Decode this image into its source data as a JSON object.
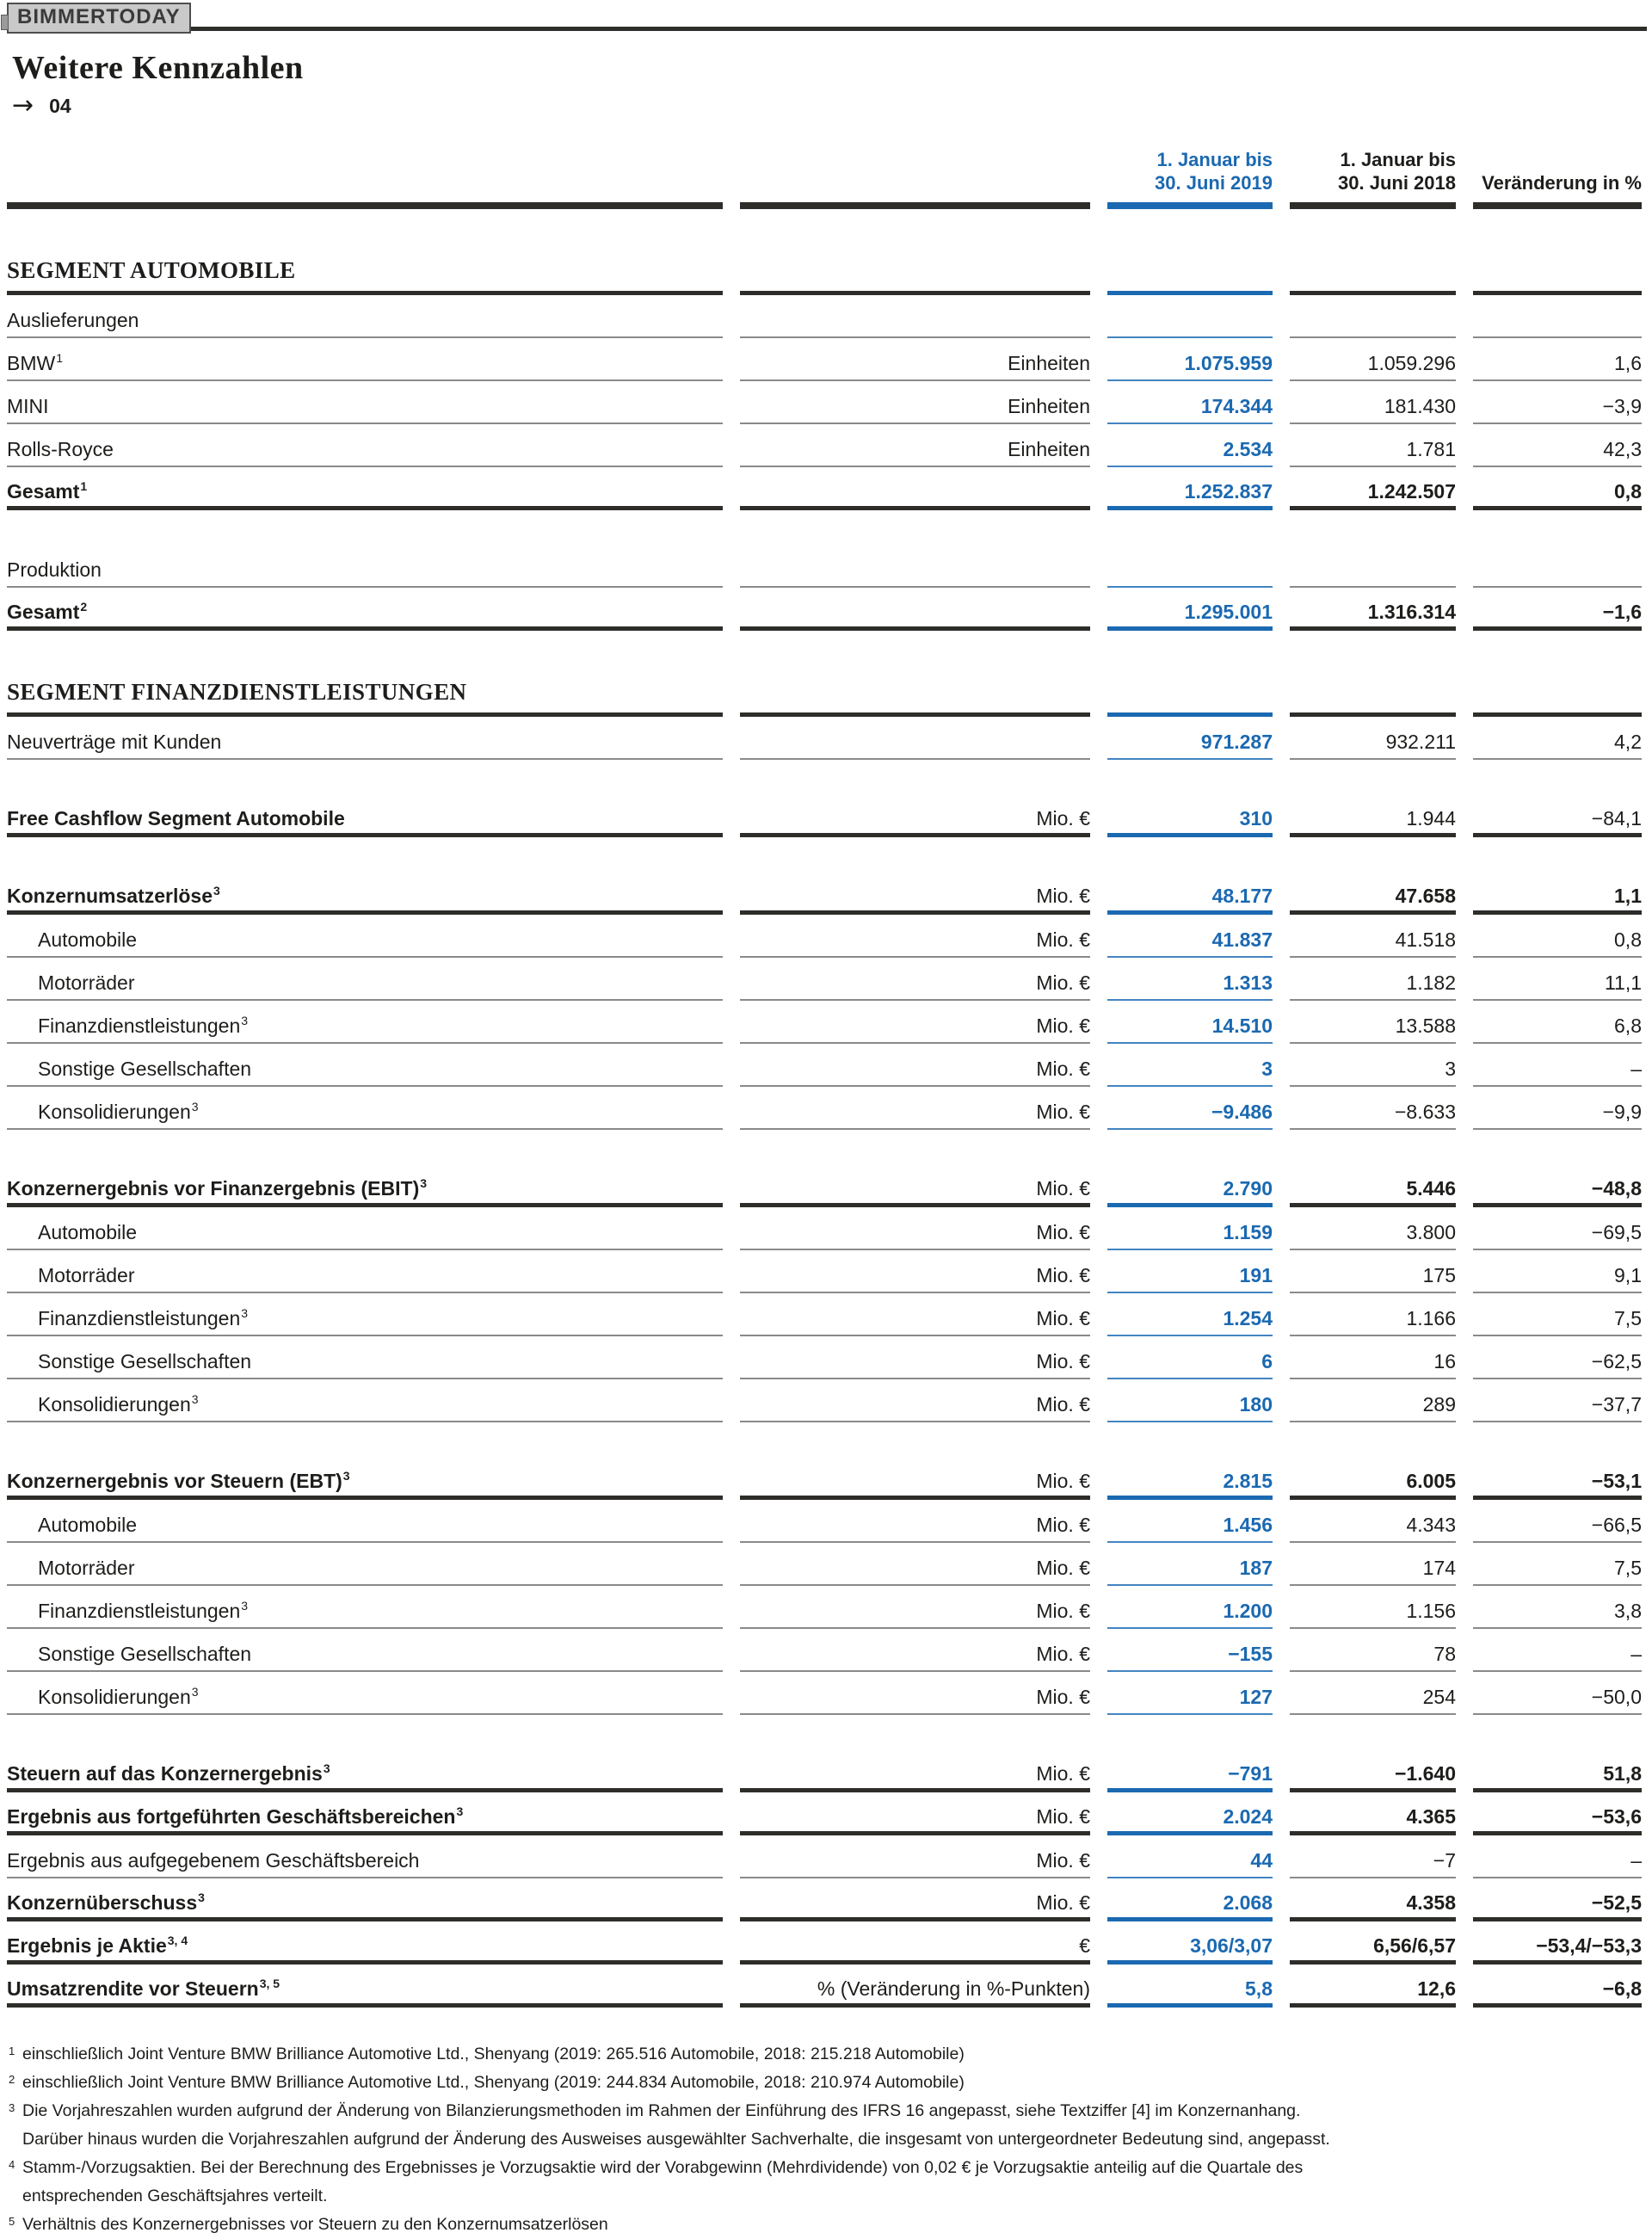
{
  "badge": "BIMMERTODAY",
  "title": "Weitere Kennzahlen",
  "page_marker": {
    "arrow": "→",
    "number": "04"
  },
  "colors": {
    "accent_blue": "#1b69b1",
    "rule_dark": "#2e2d2a",
    "rule_gray": "#8a8a8a",
    "text": "#1d1d1b",
    "badge_bg": "#c9c9c9"
  },
  "table": {
    "header": {
      "col_2019": [
        "1. Januar bis",
        "30. Juni 2019"
      ],
      "col_2018": [
        "1. Januar bis",
        "30. Juni 2018"
      ],
      "col_change": "Veränderung in %"
    },
    "rows": [
      {
        "kind": "section",
        "label": "SEGMENT AUTOMOBILE"
      },
      {
        "kind": "row",
        "label": "Auslieferungen",
        "unit": "",
        "v2019": "",
        "v2018": "",
        "chg": "",
        "rule": "thin"
      },
      {
        "kind": "row",
        "label": "BMW",
        "sup": "1",
        "unit": "Einheiten",
        "v2019": "1.075.959",
        "v2018": "1.059.296",
        "chg": "1,6",
        "rule": "thin"
      },
      {
        "kind": "row",
        "label": "MINI",
        "unit": "Einheiten",
        "v2019": "174.344",
        "v2018": "181.430",
        "chg": "−3,9",
        "rule": "thin"
      },
      {
        "kind": "row",
        "label": "Rolls-Royce",
        "unit": "Einheiten",
        "v2019": "2.534",
        "v2018": "1.781",
        "chg": "42,3",
        "rule": "thin"
      },
      {
        "kind": "row",
        "label": "Gesamt",
        "sup": "1",
        "label_bold": true,
        "values_bold": true,
        "unit": "",
        "v2019": "1.252.837",
        "v2018": "1.242.507",
        "chg": "0,8",
        "rule": "thick"
      },
      {
        "kind": "row",
        "label": "Produktion",
        "unit": "",
        "v2019": "",
        "v2018": "",
        "chg": "",
        "rule": "thin",
        "gap": true
      },
      {
        "kind": "row",
        "label": "Gesamt",
        "sup": "2",
        "label_bold": true,
        "values_bold": true,
        "unit": "",
        "v2019": "1.295.001",
        "v2018": "1.316.314",
        "chg": "−1,6",
        "rule": "thick"
      },
      {
        "kind": "section",
        "label": "SEGMENT FINANZDIENSTLEISTUNGEN"
      },
      {
        "kind": "row",
        "label": "Neuverträge mit Kunden",
        "unit": "",
        "v2019": "971.287",
        "v2018": "932.211",
        "chg": "4,2",
        "rule": "thin"
      },
      {
        "kind": "row",
        "label": "Free Cashflow Segment Automobile",
        "label_bold": true,
        "unit": "Mio. €",
        "v2019": "310",
        "v2018": "1.944",
        "chg": "−84,1",
        "rule": "thick",
        "gap": true
      },
      {
        "kind": "row",
        "label": "Konzernumsatzerlöse",
        "sup": "3",
        "label_bold": true,
        "values_bold": true,
        "unit": "Mio. €",
        "v2019": "48.177",
        "v2018": "47.658",
        "chg": "1,1",
        "rule": "thick",
        "gap": true
      },
      {
        "kind": "row",
        "label": "Automobile",
        "indent": true,
        "unit": "Mio. €",
        "v2019": "41.837",
        "v2018": "41.518",
        "chg": "0,8",
        "rule": "thin"
      },
      {
        "kind": "row",
        "label": "Motorräder",
        "indent": true,
        "unit": "Mio. €",
        "v2019": "1.313",
        "v2018": "1.182",
        "chg": "11,1",
        "rule": "thin"
      },
      {
        "kind": "row",
        "label": "Finanzdienstleistungen",
        "sup": "3",
        "indent": true,
        "unit": "Mio. €",
        "v2019": "14.510",
        "v2018": "13.588",
        "chg": "6,8",
        "rule": "thin"
      },
      {
        "kind": "row",
        "label": "Sonstige Gesellschaften",
        "indent": true,
        "unit": "Mio. €",
        "v2019": "3",
        "v2018": "3",
        "chg": "–",
        "rule": "thin"
      },
      {
        "kind": "row",
        "label": "Konsolidierungen",
        "sup": "3",
        "indent": true,
        "unit": "Mio. €",
        "v2019": "−9.486",
        "v2018": "−8.633",
        "chg": "−9,9",
        "rule": "thin"
      },
      {
        "kind": "row",
        "label": "Konzernergebnis vor Finanzergebnis (EBIT)",
        "sup": "3",
        "label_bold": true,
        "values_bold": true,
        "unit": "Mio. €",
        "v2019": "2.790",
        "v2018": "5.446",
        "chg": "−48,8",
        "rule": "thick",
        "gap": true
      },
      {
        "kind": "row",
        "label": "Automobile",
        "indent": true,
        "unit": "Mio. €",
        "v2019": "1.159",
        "v2018": "3.800",
        "chg": "−69,5",
        "rule": "thin"
      },
      {
        "kind": "row",
        "label": "Motorräder",
        "indent": true,
        "unit": "Mio. €",
        "v2019": "191",
        "v2018": "175",
        "chg": "9,1",
        "rule": "thin"
      },
      {
        "kind": "row",
        "label": "Finanzdienstleistungen",
        "sup": "3",
        "indent": true,
        "unit": "Mio. €",
        "v2019": "1.254",
        "v2018": "1.166",
        "chg": "7,5",
        "rule": "thin"
      },
      {
        "kind": "row",
        "label": "Sonstige Gesellschaften",
        "indent": true,
        "unit": "Mio. €",
        "v2019": "6",
        "v2018": "16",
        "chg": "−62,5",
        "rule": "thin"
      },
      {
        "kind": "row",
        "label": "Konsolidierungen",
        "sup": "3",
        "indent": true,
        "unit": "Mio. €",
        "v2019": "180",
        "v2018": "289",
        "chg": "−37,7",
        "rule": "thin"
      },
      {
        "kind": "row",
        "label": "Konzernergebnis vor Steuern (EBT)",
        "sup": "3",
        "label_bold": true,
        "values_bold": true,
        "unit": "Mio. €",
        "v2019": "2.815",
        "v2018": "6.005",
        "chg": "−53,1",
        "rule": "thick",
        "gap": true
      },
      {
        "kind": "row",
        "label": "Automobile",
        "indent": true,
        "unit": "Mio. €",
        "v2019": "1.456",
        "v2018": "4.343",
        "chg": "−66,5",
        "rule": "thin"
      },
      {
        "kind": "row",
        "label": "Motorräder",
        "indent": true,
        "unit": "Mio. €",
        "v2019": "187",
        "v2018": "174",
        "chg": "7,5",
        "rule": "thin"
      },
      {
        "kind": "row",
        "label": "Finanzdienstleistungen",
        "sup": "3",
        "indent": true,
        "unit": "Mio. €",
        "v2019": "1.200",
        "v2018": "1.156",
        "chg": "3,8",
        "rule": "thin"
      },
      {
        "kind": "row",
        "label": "Sonstige Gesellschaften",
        "indent": true,
        "unit": "Mio. €",
        "v2019": "−155",
        "v2018": "78",
        "chg": "–",
        "rule": "thin"
      },
      {
        "kind": "row",
        "label": "Konsolidierungen",
        "sup": "3",
        "indent": true,
        "unit": "Mio. €",
        "v2019": "127",
        "v2018": "254",
        "chg": "−50,0",
        "rule": "thin"
      },
      {
        "kind": "row",
        "label": "Steuern auf das Konzernergebnis",
        "sup": "3",
        "label_bold": true,
        "values_bold": true,
        "unit": "Mio. €",
        "v2019": "−791",
        "v2018": "−1.640",
        "chg": "51,8",
        "rule": "thick",
        "gap": true
      },
      {
        "kind": "row",
        "label": "Ergebnis aus fortgeführten Geschäftsbereichen",
        "sup": "3",
        "label_bold": true,
        "values_bold": true,
        "unit": "Mio. €",
        "v2019": "2.024",
        "v2018": "4.365",
        "chg": "−53,6",
        "rule": "thick"
      },
      {
        "kind": "row",
        "label": "Ergebnis aus aufgegebenem Geschäftsbereich",
        "unit": "Mio. €",
        "v2019": "44",
        "v2018": "−7",
        "chg": "–",
        "rule": "thin"
      },
      {
        "kind": "row",
        "label": "Konzernüberschuss",
        "sup": "3",
        "label_bold": true,
        "values_bold": true,
        "unit": "Mio. €",
        "v2019": "2.068",
        "v2018": "4.358",
        "chg": "−52,5",
        "rule": "thick"
      },
      {
        "kind": "row",
        "label": "Ergebnis je Aktie",
        "sup": "3, 4",
        "label_bold": true,
        "values_bold": true,
        "unit": "€",
        "v2019": "3,06/3,07",
        "v2018": "6,56/6,57",
        "chg": "−53,4/−53,3",
        "rule": "thick"
      },
      {
        "kind": "row",
        "label": "Umsatzrendite vor Steuern",
        "sup": "3, 5",
        "label_bold": true,
        "values_bold": true,
        "unit": "% (Veränderung in %-Punkten)",
        "v2019": "5,8",
        "v2018": "12,6",
        "chg": "−6,8",
        "rule": "thick"
      }
    ]
  },
  "footnotes": [
    {
      "sup": "1",
      "lines": [
        "einschließlich Joint Venture BMW Brilliance Automotive Ltd., Shenyang (2019: 265.516 Automobile, 2018: 215.218 Automobile)"
      ]
    },
    {
      "sup": "2",
      "lines": [
        "einschließlich Joint Venture BMW Brilliance Automotive Ltd., Shenyang (2019: 244.834 Automobile, 2018: 210.974 Automobile)"
      ]
    },
    {
      "sup": "3",
      "lines": [
        "Die Vorjahreszahlen wurden aufgrund der Änderung von Bilanzierungsmethoden im Rahmen der Einführung des IFRS 16 angepasst, siehe Textziffer [4] im Konzernanhang.",
        "Darüber hinaus wurden die Vorjahreszahlen aufgrund der Änderung des Ausweises ausgewählter Sachverhalte, die insgesamt von untergeordneter Bedeutung sind, angepasst."
      ]
    },
    {
      "sup": "4",
      "lines": [
        "Stamm-/Vorzugsaktien. Bei der Berechnung des Ergebnisses je Vorzugsaktie wird der Vorabgewinn (Mehrdividende) von 0,02 € je Vorzugsaktie anteilig auf die Quartale des",
        "entsprechenden Geschäftsjahres verteilt."
      ]
    },
    {
      "sup": "5",
      "lines": [
        "Verhältnis des Konzernergebnisses vor Steuern zu den Konzernumsatzerlösen"
      ]
    }
  ]
}
